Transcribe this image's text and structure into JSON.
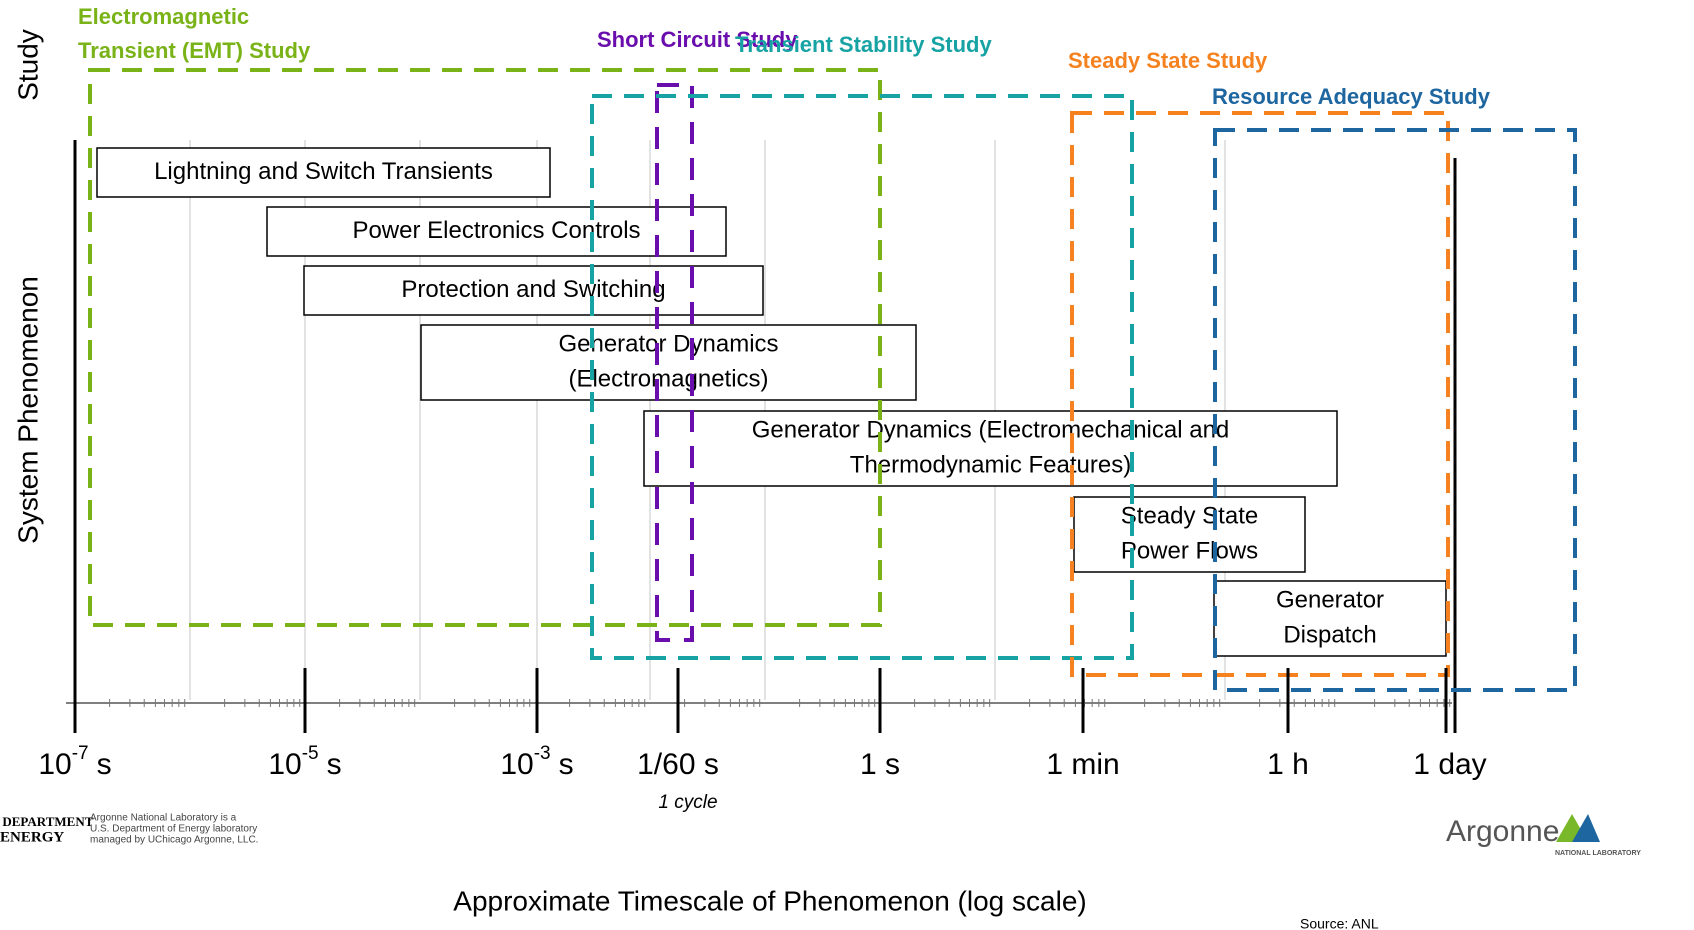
{
  "y_labels": {
    "top": "Study",
    "bottom": "System Phenomenon"
  },
  "studies": [
    {
      "lines": [
        "Electromagnetic",
        "Transient (EMT) Study"
      ],
      "color": "#7ab317"
    },
    {
      "lines": [
        "Short Circuit Study"
      ],
      "color": "#6a0dad"
    },
    {
      "lines": [
        "Transient Stability Study"
      ],
      "color": "#17a3a3"
    },
    {
      "lines": [
        "Steady State Study"
      ],
      "color": "#f5821f"
    },
    {
      "lines": [
        "Resource Adequacy Study"
      ],
      "color": "#1d66a0"
    }
  ],
  "phenomena": [
    {
      "lines": [
        "Lightning and Switch Transients"
      ]
    },
    {
      "lines": [
        "Power Electronics Controls"
      ]
    },
    {
      "lines": [
        "Protection and Switching"
      ]
    },
    {
      "lines": [
        "Generator Dynamics",
        "(Electromagnetics)"
      ]
    },
    {
      "lines": [
        "Generator Dynamics (Electromechanical and",
        "Thermodynamic Features)"
      ]
    },
    {
      "lines": [
        "Steady State",
        "Power Flows"
      ]
    },
    {
      "lines": [
        "Generator",
        "Dispatch"
      ]
    }
  ],
  "axis": {
    "title": "Approximate Timescale of Phenomenon (log scale)",
    "ticks": [
      {
        "text": "10",
        "sup": "-7",
        "unit": "s"
      },
      {
        "text": "10",
        "sup": "-5",
        "unit": "s"
      },
      {
        "text": "10",
        "sup": "-3",
        "unit": "s"
      },
      {
        "text": "1/60 s"
      },
      {
        "text": "1 s"
      },
      {
        "text": "1 min"
      },
      {
        "text": "1 h"
      },
      {
        "text": "1 day"
      }
    ],
    "note": "1 cycle"
  },
  "footer": {
    "doe": [
      "U.S. DEPARTMENT",
      "OF ENERGY"
    ],
    "doe_note": [
      "Argonne National Laboratory is a",
      "U.S. Department of Energy laboratory",
      "managed by UChicago Argonne, LLC."
    ],
    "source": "Source: ANL",
    "logo": "Argonne",
    "logo_sub": "NATIONAL LABORATORY"
  }
}
